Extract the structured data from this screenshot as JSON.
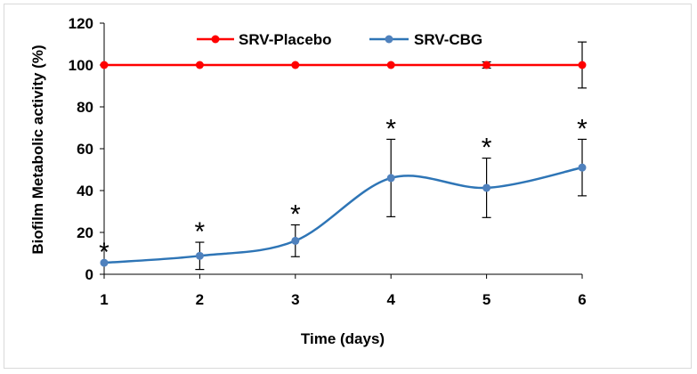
{
  "chart_data": {
    "type": "line",
    "title": "",
    "xlabel": "Time (days)",
    "ylabel": "Biofilm Metabolic activity (%)",
    "x": [
      1,
      2,
      3,
      4,
      5,
      6
    ],
    "x_ticks": [
      "1",
      "2",
      "3",
      "4",
      "5",
      "6"
    ],
    "y_ticks": [
      "0",
      "20",
      "40",
      "60",
      "80",
      "100",
      "120"
    ],
    "xlim": [
      1,
      6
    ],
    "ylim": [
      0,
      120
    ],
    "grid": false,
    "legend_position": "top",
    "series": [
      {
        "name": "SRV-Placebo",
        "color": "#ff0000",
        "smooth": false,
        "values": [
          100,
          100,
          100,
          100,
          100,
          100
        ],
        "errors": [
          0,
          0,
          0,
          0,
          1.5,
          11
        ]
      },
      {
        "name": "SRV-CBG",
        "color": "#4f81bd",
        "line_color": "#2e75b6",
        "smooth": true,
        "values": [
          5.5,
          8.8,
          16,
          46,
          41.3,
          51
        ],
        "errors": [
          0,
          6.5,
          7.6,
          18.5,
          14.2,
          13.5
        ]
      }
    ],
    "annotations": {
      "significance_marker": "*",
      "marked_points": [
        1,
        2,
        3,
        4,
        5,
        6
      ]
    }
  }
}
